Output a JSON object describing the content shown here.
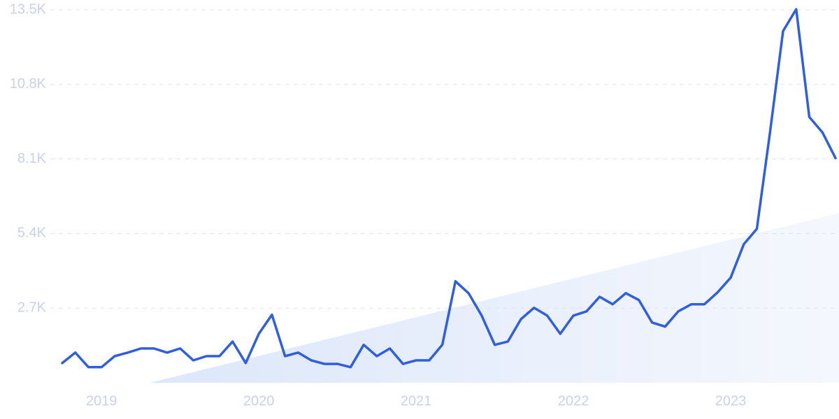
{
  "chart_data": {
    "type": "line",
    "categories": [
      null,
      null,
      null,
      "2019",
      null,
      null,
      null,
      null,
      null,
      null,
      null,
      null,
      null,
      null,
      null,
      "2020",
      null,
      null,
      null,
      null,
      null,
      null,
      null,
      null,
      null,
      null,
      null,
      "2021",
      null,
      null,
      null,
      null,
      null,
      null,
      null,
      null,
      null,
      null,
      null,
      "2022",
      null,
      null,
      null,
      null,
      null,
      null,
      null,
      null,
      null,
      null,
      null,
      "2023",
      null,
      null,
      null,
      null,
      null,
      null,
      null,
      null
    ],
    "series": [
      {
        "color": "#2f5fe0",
        "values": [
          710,
          1090,
          560,
          560,
          960,
          1090,
          1240,
          1240,
          1090,
          1240,
          810,
          960,
          960,
          1490,
          710,
          1770,
          2460,
          960,
          1090,
          810,
          680,
          680,
          560,
          1370,
          960,
          1240,
          680,
          810,
          810,
          1370,
          3670,
          3240,
          2430,
          1370,
          1490,
          2300,
          2710,
          2430,
          1770,
          2430,
          2580,
          3110,
          2840,
          3240,
          2990,
          2180,
          2030,
          2580,
          2840,
          2840,
          3270,
          3800,
          5010,
          5570,
          9060,
          12730,
          13520,
          9620,
          9060,
          8130
        ]
      }
    ],
    "ylim": [
      0,
      13500
    ],
    "yticks": [
      {
        "value": 2700,
        "label": "2.7K"
      },
      {
        "value": 5400,
        "label": "5.4K"
      },
      {
        "value": 8100,
        "label": "8.1K"
      },
      {
        "value": 10800,
        "label": "10.8K"
      },
      {
        "value": 13500,
        "label": "13.5K"
      }
    ],
    "grid": true
  }
}
